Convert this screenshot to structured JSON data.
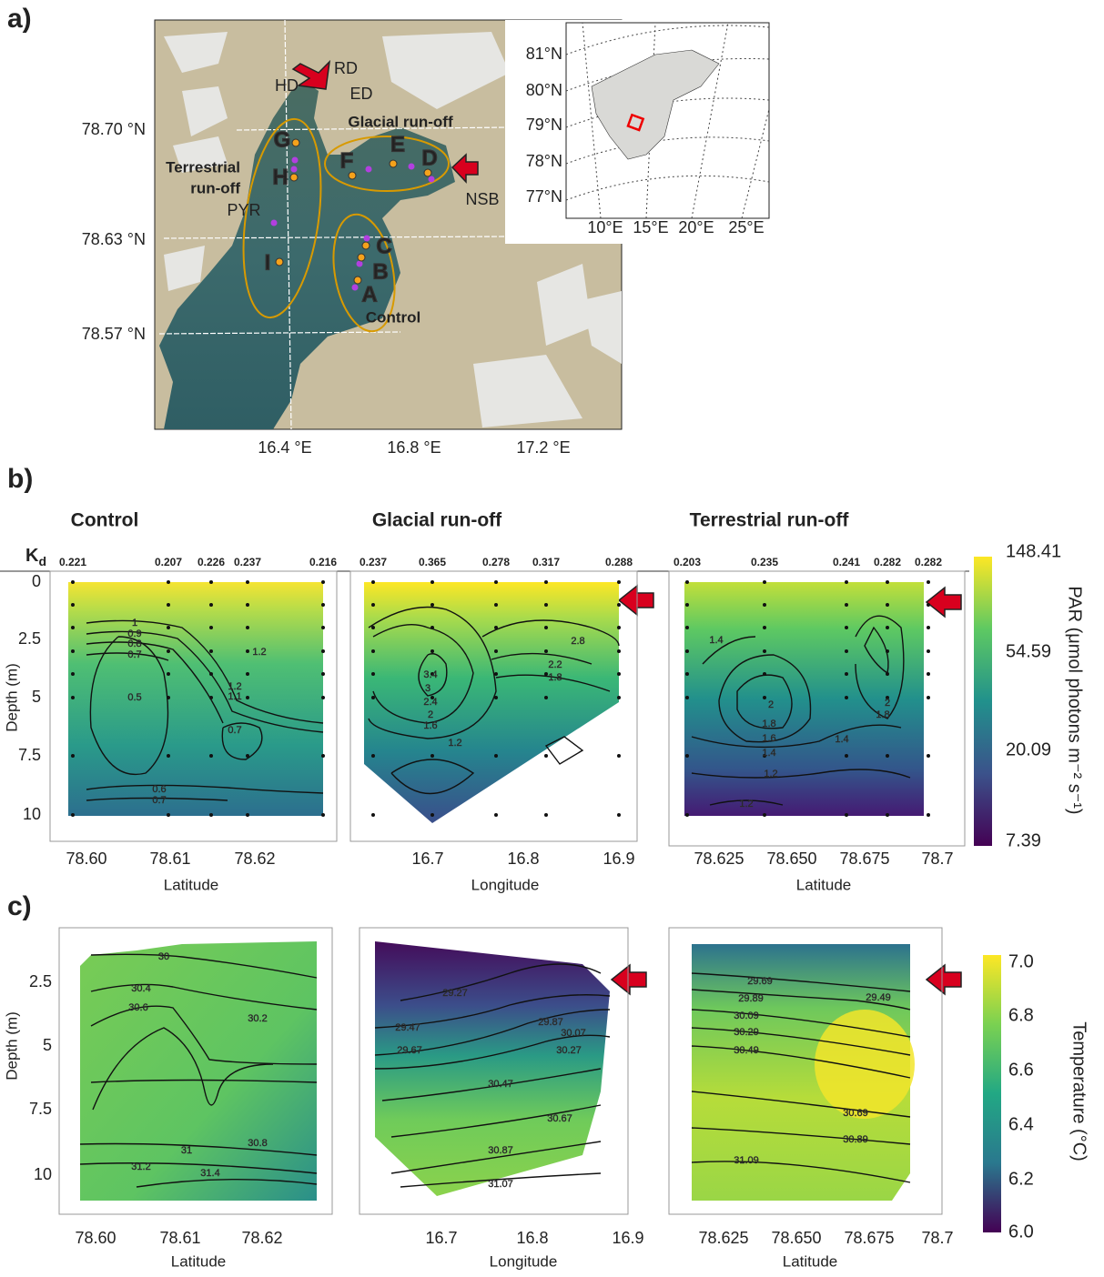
{
  "panel_a": {
    "label": "a)",
    "map": {
      "lat_ticks": [
        "78.70 °N",
        "78.63 °N",
        "78.57 °N"
      ],
      "lon_ticks": [
        "16.4 °E",
        "16.8 °E",
        "17.2 °E"
      ],
      "sites": [
        "A",
        "B",
        "C",
        "D",
        "E",
        "F",
        "G",
        "H",
        "I"
      ],
      "places": [
        "HD",
        "RD",
        "ED",
        "PYR",
        "NSB"
      ],
      "zones": {
        "glacial": "Glacial run-off",
        "terrestrial": [
          "Terrestrial",
          "run-off"
        ],
        "control": "Control"
      }
    },
    "inset": {
      "lat_ticks": [
        "81°N",
        "80°N",
        "79°N",
        "78°N",
        "77°N"
      ],
      "lon_ticks": [
        "10°E",
        "15°E",
        "20°E",
        "25°E"
      ]
    }
  },
  "panel_b": {
    "label": "b)",
    "kd_label": "K",
    "kd_subscript": "d",
    "y_label": "Depth (m)",
    "y_ticks": [
      "0",
      "2.5",
      "5",
      "7.5",
      "10"
    ],
    "plots": [
      {
        "title": "Control",
        "kd": [
          "0.221",
          "0.207",
          "0.226",
          "0.237",
          "0.216"
        ],
        "x_label": "Latitude",
        "x_ticks": [
          "78.60",
          "78.61",
          "78.62"
        ],
        "contour_labels": [
          "1",
          "0.9",
          "0.8",
          "0.7",
          "1.2",
          "1.2",
          "1.1",
          "0.5",
          "0.7",
          "0.6",
          "0.7"
        ]
      },
      {
        "title": "Glacial run-off",
        "kd": [
          "0.237",
          "0.365",
          "0.278",
          "0.317",
          "0.288"
        ],
        "x_label": "Longitude",
        "x_ticks": [
          "16.7",
          "16.8",
          "16.9"
        ],
        "contour_labels": [
          "3.4",
          "3",
          "2.4",
          "2",
          "1.6",
          "1.2",
          "2.8",
          "2.2",
          "1.8"
        ]
      },
      {
        "title": "Terrestrial run-off",
        "kd": [
          "0.203",
          "0.235",
          "0.241",
          "0.282",
          "0.282"
        ],
        "x_label": "Latitude",
        "x_ticks": [
          "78.625",
          "78.650",
          "78.675",
          "78.7"
        ],
        "contour_labels": [
          "1.4",
          "2",
          "1.8",
          "1.6",
          "1.4",
          "1.2",
          "1.2",
          "1.4",
          "2",
          "1.8"
        ]
      }
    ],
    "colorbar": {
      "label": "PAR (μmol photons m⁻² s⁻¹)",
      "ticks": [
        "148.41",
        "54.59",
        "20.09",
        "7.39"
      ]
    }
  },
  "panel_c": {
    "label": "c)",
    "y_label": "Depth (m)",
    "y_ticks": [
      "2.5",
      "5",
      "7.5",
      "10"
    ],
    "plots": [
      {
        "x_label": "Latitude",
        "x_ticks": [
          "78.60",
          "78.61",
          "78.62"
        ],
        "contour_labels": [
          "30",
          "30.4",
          "30.6",
          "30.2",
          "31",
          "30.8",
          "31.2",
          "31.4"
        ]
      },
      {
        "x_label": "Longitude",
        "x_ticks": [
          "16.7",
          "16.8",
          "16.9"
        ],
        "contour_labels": [
          "29.27",
          "29.47",
          "29.67",
          "29.87",
          "30.07",
          "30.27",
          "30.47",
          "30.67",
          "30.87",
          "31.07"
        ]
      },
      {
        "x_label": "Latitude",
        "x_ticks": [
          "78.625",
          "78.650",
          "78.675",
          "78.7"
        ],
        "contour_labels": [
          "29.69",
          "29.89",
          "30.09",
          "30.29",
          "30.49",
          "29.49",
          "30.69",
          "30.89",
          "31.09"
        ]
      }
    ],
    "colorbar": {
      "label": "Temperature (°C)",
      "ticks": [
        "7.0",
        "6.8",
        "6.6",
        "6.4",
        "6.2",
        "6.0"
      ]
    }
  }
}
